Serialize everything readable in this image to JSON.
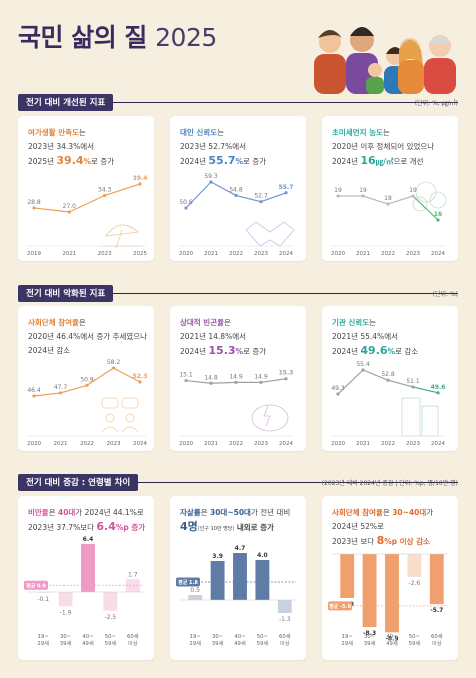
{
  "title": {
    "main": "국민 삶의 질",
    "year": "2025"
  },
  "sections": {
    "improved": {
      "label": "전기 대비 개선된 지표",
      "unit": "(단위: %, ㎍/㎥)"
    },
    "worsened": {
      "label": "전기 대비 악화된 지표",
      "unit": "(단위: %)"
    },
    "age": {
      "label": "전기 대비 증감 : 연령별 차이",
      "unit": "(2023년 대비 2024년 증감 | 단위: %p, 명/10만 명)"
    }
  },
  "cards": {
    "c1": {
      "name": "여가생활 만족도",
      "tail": "는",
      "l2": "2023년 34.3%에서",
      "l3a": "2025년",
      "big": "39.4",
      "bigu": "%",
      "l3b": "로 증가"
    },
    "c2": {
      "name": "대인 신뢰도",
      "tail": "는",
      "l2": "2023년 52.7%에서",
      "l3a": "2024년",
      "big": "55.7",
      "bigu": "%",
      "l3b": "로 증가"
    },
    "c3": {
      "name": "초미세먼지 농도",
      "tail": "는",
      "l2": "2020년 이후 정체되어 있었으나",
      "l3a": "2024년",
      "big": "16",
      "bigu": "㎍/㎥",
      "l3b": "으로 개선"
    },
    "c4": {
      "name": "사회단체 참여율",
      "tail": "은",
      "l2": "2020년 46.4%에서 증가 추세였으나",
      "l3": "2024년 감소"
    },
    "c5": {
      "name": "상대적 빈곤율",
      "tail": "은",
      "l2": "2021년 14.8%에서",
      "l3a": "2024년",
      "big": "15.3",
      "bigu": "%",
      "l3b": "로 증가"
    },
    "c6": {
      "name": "기관 신뢰도",
      "tail": "는",
      "l2": "2021년 55.4%에서",
      "l3a": "2024년",
      "big": "49.6",
      "bigu": "%",
      "l3b": "로 감소"
    },
    "c7": {
      "name": "비만율",
      "t1": "은 ",
      "n2": "40대",
      "t2": "가 2024년 44.1%로",
      "l2a": "2023년 37.7%보다",
      "big": "6.4",
      "bigu": "%p 증가"
    },
    "c8": {
      "name": "자살률",
      "t1": "은 ",
      "n2": "30대~50대",
      "t2": "가 전년 대비",
      "big": "4명",
      "note": "(인구 10만 명당)",
      "tail": " 내외로 증가"
    },
    "c9": {
      "name": "사회단체 참여율",
      "t1": "은 ",
      "n2": "30~40대",
      "t2": "가",
      "l2": "2024년 52%로",
      "l3a": "2023년 보다",
      "big": "8",
      "bigu": "%p 이상 감소"
    }
  },
  "chart_data": [
    {
      "type": "line",
      "x": [
        "2019",
        "2021",
        "2023",
        "2025"
      ],
      "values": [
        28.8,
        27.0,
        34.3,
        39.4
      ],
      "labels": [
        "28.8",
        "27.0",
        "34.3",
        "39.4"
      ]
    },
    {
      "type": "line",
      "x": [
        "2020",
        "2021",
        "2022",
        "2023",
        "2024"
      ],
      "values": [
        50.6,
        59.3,
        54.8,
        52.7,
        55.7
      ],
      "labels": [
        "50.6",
        "59.3",
        "54.8",
        "52.7",
        "55.7"
      ]
    },
    {
      "type": "line",
      "x": [
        "2020",
        "2021",
        "2022",
        "2023",
        "2024"
      ],
      "values": [
        19,
        19,
        18,
        19,
        16
      ],
      "labels": [
        "19",
        "19",
        "18",
        "19",
        "16"
      ]
    },
    {
      "type": "line",
      "x": [
        "2020",
        "2021",
        "2022",
        "2023",
        "2024"
      ],
      "values": [
        46.4,
        47.7,
        50.9,
        58.2,
        52.3
      ],
      "labels": [
        "46.4",
        "47.7",
        "50.9",
        "58.2",
        "52.3"
      ]
    },
    {
      "type": "line",
      "x": [
        "2020",
        "2021",
        "2022",
        "2023",
        "2024"
      ],
      "values": [
        15.1,
        14.8,
        14.9,
        14.9,
        15.3
      ],
      "labels": [
        "15.1",
        "14.8",
        "14.9",
        "14.9",
        "15.3"
      ]
    },
    {
      "type": "line",
      "x": [
        "2020",
        "2021",
        "2022",
        "2023",
        "2024"
      ],
      "values": [
        49.3,
        55.4,
        52.8,
        51.1,
        49.6
      ],
      "labels": [
        "49.3",
        "55.4",
        "52.8",
        "51.1",
        "49.6"
      ]
    },
    {
      "type": "bar",
      "categories": [
        "19~\n29세",
        "30~\n39세",
        "40~\n49세",
        "50~\n59세",
        "60세\n이상"
      ],
      "values": [
        -0.1,
        -1.9,
        6.4,
        -2.5,
        1.7
      ],
      "labels": [
        "-0.1",
        "-1.9",
        "6.4",
        "-2.5",
        "1.7"
      ],
      "average": 0.9,
      "average_label": "평균 0.9"
    },
    {
      "type": "bar",
      "categories": [
        "19~\n29세",
        "30~\n39세",
        "40~\n49세",
        "50~\n59세",
        "60세\n이상"
      ],
      "values": [
        0.5,
        3.9,
        4.7,
        4.0,
        -1.3
      ],
      "labels": [
        "0.5",
        "3.9",
        "4.7",
        "4.0",
        "-1.3"
      ],
      "average": 1.8,
      "average_label": "평균 1.8"
    },
    {
      "type": "bar",
      "categories": [
        "19~\n29세",
        "30~\n39세",
        "40~\n49세",
        "50~\n59세",
        "60세\n이상"
      ],
      "values": [
        -5.0,
        -8.3,
        -8.9,
        -2.6,
        -5.7
      ],
      "labels": [
        "-5.0",
        "-8.3",
        "-8.9",
        "-2.6",
        "-5.7"
      ],
      "average": -5.9,
      "average_label": "평균 -5.9"
    }
  ],
  "colors": {
    "c1": "#e8a256",
    "c2": "#6f98cf",
    "c3": "#b9bdb7",
    "c3last": "#4fb86d",
    "c4": "#e8a256",
    "c5": "#9ea0a6",
    "c6": "#9ea0a6",
    "c6last": "#3fae8b",
    "bar7": "#ee9ac4",
    "bar8": "#5f7ca7",
    "bar9": "#f0a06e"
  }
}
